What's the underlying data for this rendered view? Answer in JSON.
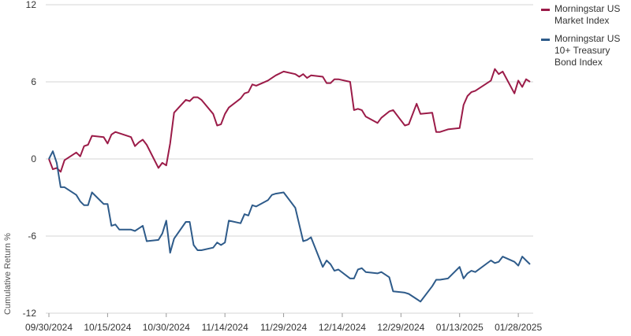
{
  "chart_data": {
    "type": "line",
    "ylabel": "Cumulative Return %",
    "xlabel": "",
    "ylim": [
      -12,
      12
    ],
    "yticks": [
      12,
      6,
      0,
      -6,
      -12
    ],
    "xtick_labels": [
      "09/30/2024",
      "10/15/2024",
      "10/30/2024",
      "11/14/2024",
      "11/29/2024",
      "12/14/2024",
      "12/29/2024",
      "01/13/2025",
      "01/28/2025"
    ],
    "grid": "horizontal",
    "legend_position": "top-right",
    "series": [
      {
        "name": "Morningstar US Market Index",
        "color": "#9b1b48",
        "x": [
          "09/30/2024",
          "10/01/2024",
          "10/02/2024",
          "10/03/2024",
          "10/04/2024",
          "10/07/2024",
          "10/08/2024",
          "10/09/2024",
          "10/10/2024",
          "10/11/2024",
          "10/14/2024",
          "10/15/2024",
          "10/16/2024",
          "10/17/2024",
          "10/18/2024",
          "10/21/2024",
          "10/22/2024",
          "10/23/2024",
          "10/24/2024",
          "10/25/2024",
          "10/28/2024",
          "10/29/2024",
          "10/30/2024",
          "10/31/2024",
          "11/01/2024",
          "11/04/2024",
          "11/05/2024",
          "11/06/2024",
          "11/07/2024",
          "11/08/2024",
          "11/11/2024",
          "11/12/2024",
          "11/13/2024",
          "11/14/2024",
          "11/15/2024",
          "11/18/2024",
          "11/19/2024",
          "11/20/2024",
          "11/21/2024",
          "11/22/2024",
          "11/25/2024",
          "11/26/2024",
          "11/27/2024",
          "11/29/2024",
          "12/02/2024",
          "12/03/2024",
          "12/04/2024",
          "12/05/2024",
          "12/06/2024",
          "12/09/2024",
          "12/10/2024",
          "12/11/2024",
          "12/12/2024",
          "12/13/2024",
          "12/16/2024",
          "12/17/2024",
          "12/18/2024",
          "12/19/2024",
          "12/20/2024",
          "12/23/2024",
          "12/24/2024",
          "12/26/2024",
          "12/27/2024",
          "12/30/2024",
          "12/31/2024",
          "01/02/2025",
          "01/03/2025",
          "01/06/2025",
          "01/07/2025",
          "01/08/2025",
          "01/10/2025",
          "01/13/2025",
          "01/14/2025",
          "01/15/2025",
          "01/16/2025",
          "01/17/2025",
          "01/21/2025",
          "01/22/2025",
          "01/23/2025",
          "01/24/2025",
          "01/27/2025",
          "01/28/2025",
          "01/29/2025",
          "01/30/2025",
          "01/31/2025"
        ],
        "values": [
          0.0,
          -0.8,
          -0.7,
          -1.0,
          -0.1,
          0.5,
          0.2,
          1.0,
          1.1,
          1.8,
          1.7,
          1.2,
          1.9,
          2.1,
          2.0,
          1.7,
          1.0,
          1.3,
          1.5,
          1.1,
          -0.7,
          -0.3,
          -0.5,
          1.2,
          3.6,
          4.6,
          4.5,
          4.8,
          4.8,
          4.6,
          3.5,
          2.6,
          2.7,
          3.5,
          4.0,
          4.7,
          5.1,
          5.2,
          5.8,
          5.7,
          6.1,
          6.3,
          6.5,
          6.8,
          6.6,
          6.4,
          6.6,
          6.3,
          6.5,
          6.4,
          5.9,
          5.9,
          6.2,
          6.2,
          6.0,
          3.8,
          3.9,
          3.8,
          3.3,
          2.8,
          3.2,
          3.7,
          3.8,
          2.6,
          2.7,
          4.3,
          3.5,
          3.6,
          2.1,
          2.1,
          2.3,
          2.4,
          4.2,
          4.9,
          5.2,
          5.3,
          6.1,
          7.0,
          6.6,
          6.8,
          5.1,
          6.1,
          5.6,
          6.2,
          6.0
        ]
      },
      {
        "name": "Morningstar US 10+ Treasury Bond Index",
        "color": "#2e5b8a",
        "x": [
          "09/30/2024",
          "10/01/2024",
          "10/02/2024",
          "10/03/2024",
          "10/04/2024",
          "10/07/2024",
          "10/08/2024",
          "10/09/2024",
          "10/10/2024",
          "10/11/2024",
          "10/14/2024",
          "10/15/2024",
          "10/16/2024",
          "10/17/2024",
          "10/18/2024",
          "10/21/2024",
          "10/22/2024",
          "10/23/2024",
          "10/24/2024",
          "10/25/2024",
          "10/28/2024",
          "10/29/2024",
          "10/30/2024",
          "10/31/2024",
          "11/01/2024",
          "11/04/2024",
          "11/05/2024",
          "11/06/2024",
          "11/07/2024",
          "11/08/2024",
          "11/11/2024",
          "11/12/2024",
          "11/13/2024",
          "11/14/2024",
          "11/15/2024",
          "11/18/2024",
          "11/19/2024",
          "11/20/2024",
          "11/21/2024",
          "11/22/2024",
          "11/25/2024",
          "11/26/2024",
          "11/27/2024",
          "11/29/2024",
          "12/02/2024",
          "12/03/2024",
          "12/04/2024",
          "12/05/2024",
          "12/06/2024",
          "12/09/2024",
          "12/10/2024",
          "12/11/2024",
          "12/12/2024",
          "12/13/2024",
          "12/16/2024",
          "12/17/2024",
          "12/18/2024",
          "12/19/2024",
          "12/20/2024",
          "12/23/2024",
          "12/24/2024",
          "12/26/2024",
          "12/27/2024",
          "12/30/2024",
          "12/31/2024",
          "01/02/2025",
          "01/03/2025",
          "01/06/2025",
          "01/07/2025",
          "01/08/2025",
          "01/10/2025",
          "01/13/2025",
          "01/14/2025",
          "01/15/2025",
          "01/16/2025",
          "01/17/2025",
          "01/21/2025",
          "01/22/2025",
          "01/23/2025",
          "01/24/2025",
          "01/27/2025",
          "01/28/2025",
          "01/29/2025",
          "01/30/2025",
          "01/31/2025"
        ],
        "values": [
          0.0,
          0.6,
          -0.3,
          -2.2,
          -2.2,
          -2.8,
          -3.3,
          -3.6,
          -3.6,
          -2.6,
          -3.5,
          -3.5,
          -5.2,
          -5.1,
          -5.5,
          -5.5,
          -5.6,
          -5.4,
          -5.2,
          -6.4,
          -6.3,
          -5.8,
          -4.8,
          -7.3,
          -6.2,
          -4.9,
          -4.9,
          -6.7,
          -7.1,
          -7.1,
          -6.9,
          -6.5,
          -6.7,
          -6.5,
          -4.8,
          -5.0,
          -4.3,
          -4.4,
          -3.6,
          -3.7,
          -3.2,
          -2.8,
          -2.7,
          -2.6,
          -3.8,
          -5.1,
          -6.4,
          -6.3,
          -6.1,
          -8.4,
          -7.9,
          -8.2,
          -8.7,
          -8.6,
          -9.3,
          -9.3,
          -8.6,
          -8.5,
          -8.8,
          -8.9,
          -8.8,
          -9.2,
          -10.3,
          -10.4,
          -10.5,
          -10.9,
          -11.1,
          -9.9,
          -9.4,
          -9.4,
          -9.3,
          -8.4,
          -9.3,
          -8.9,
          -8.7,
          -8.8,
          -7.9,
          -8.1,
          -8.0,
          -7.6,
          -8.0,
          -8.3,
          -7.6,
          -7.9,
          -8.2
        ]
      }
    ]
  }
}
